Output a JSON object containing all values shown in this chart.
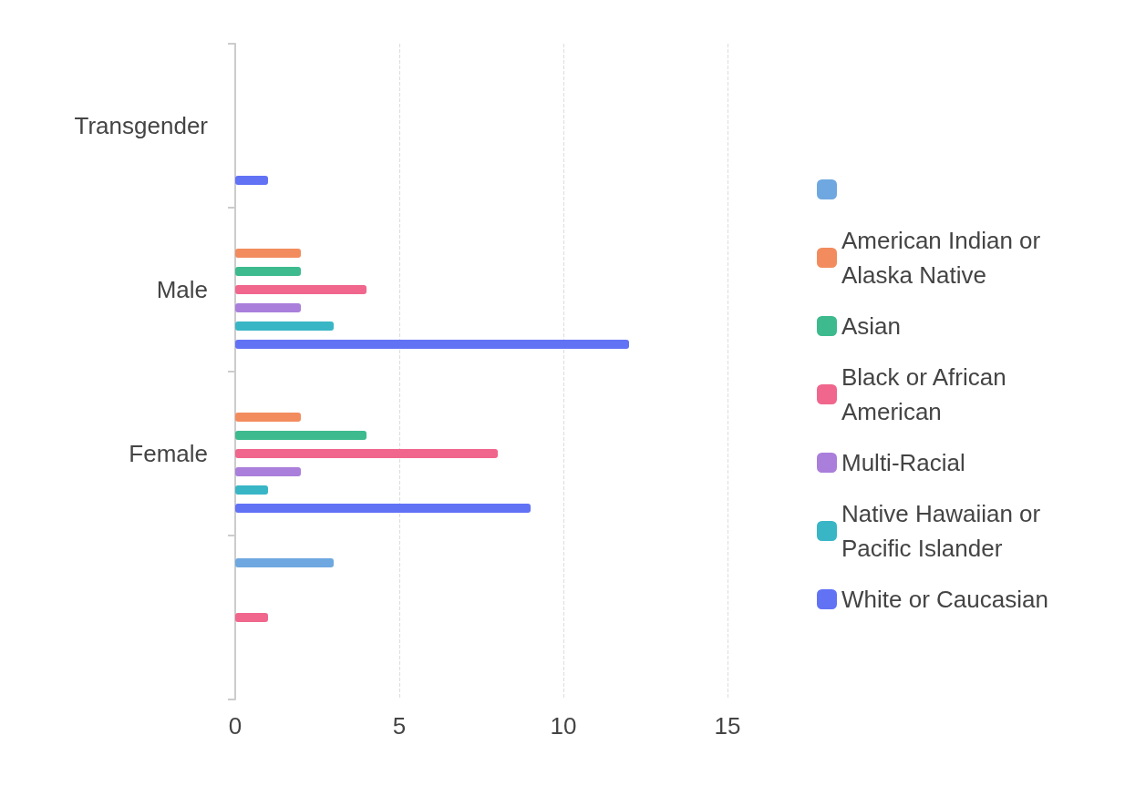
{
  "chart_data": {
    "type": "bar",
    "orientation": "horizontal",
    "categories": [
      "Transgender",
      "Male",
      "Female",
      null
    ],
    "series": [
      {
        "name": null,
        "color": "#6fa8e0",
        "values": [
          0,
          0,
          0,
          3
        ]
      },
      {
        "name": "American Indian or Alaska Native",
        "color": "#f28c5e",
        "values": [
          0,
          2,
          2,
          0
        ]
      },
      {
        "name": "Asian",
        "color": "#3dba8e",
        "values": [
          0,
          2,
          4,
          0
        ]
      },
      {
        "name": "Black or African American",
        "color": "#f0668c",
        "values": [
          0,
          4,
          8,
          1
        ]
      },
      {
        "name": "Multi-Racial",
        "color": "#a97fdb",
        "values": [
          0,
          2,
          2,
          0
        ]
      },
      {
        "name": "Native Hawaiian or Pacific Islander",
        "color": "#38b6c6",
        "values": [
          0,
          3,
          1,
          0
        ]
      },
      {
        "name": "White or Caucasian",
        "color": "#6272f5",
        "values": [
          1,
          12,
          9,
          0
        ]
      }
    ],
    "xlim": [
      0,
      15
    ],
    "xticks": [
      0,
      5,
      10,
      15
    ],
    "grid": "x",
    "legend": "right"
  }
}
